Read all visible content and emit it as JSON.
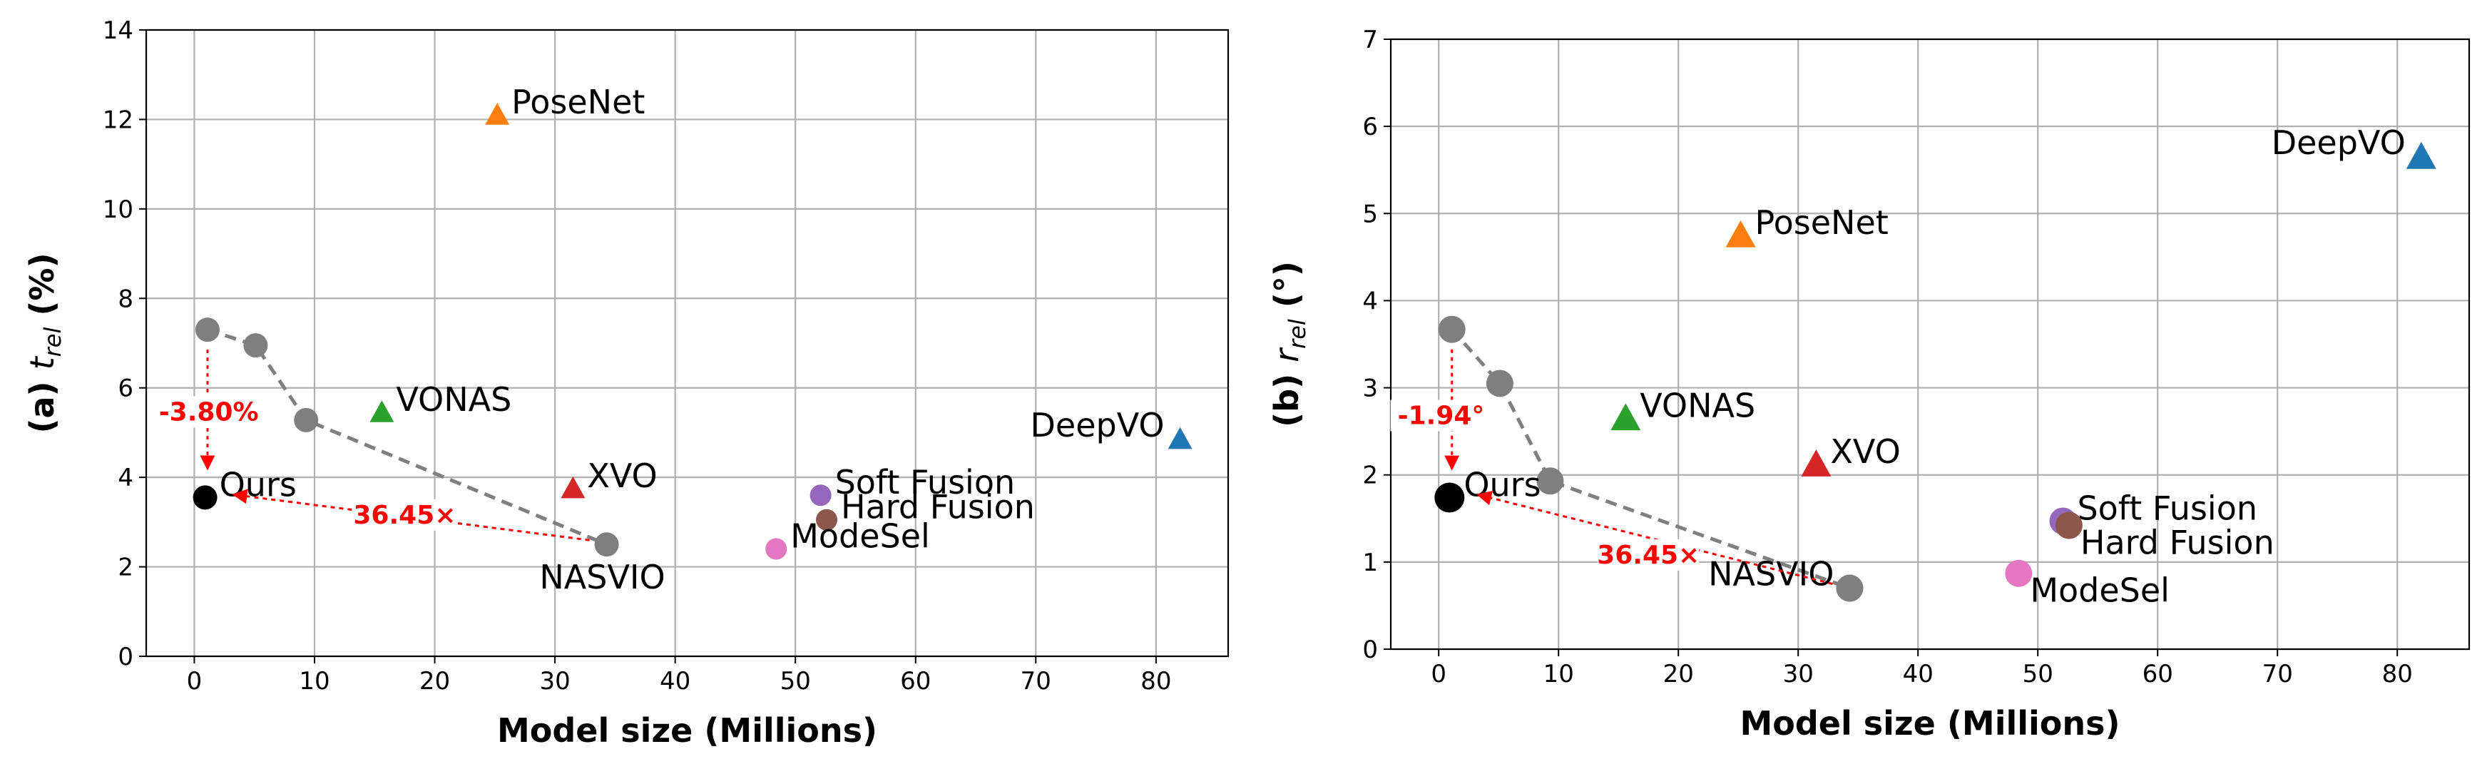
{
  "chart_data": [
    {
      "type": "scatter",
      "panel_label": "(a)",
      "ylabel": "t",
      "ylabel_sub": "rel",
      "ylabel_unit": "(%)",
      "xlabel": "Model size (Millions)",
      "xlim": [
        -4,
        86
      ],
      "ylim": [
        0,
        14
      ],
      "xticks": [
        0,
        10,
        20,
        30,
        40,
        50,
        60,
        70,
        80
      ],
      "yticks": [
        0,
        2,
        4,
        6,
        8,
        10,
        12,
        14
      ],
      "grid": true,
      "points": [
        {
          "name": "PoseNet",
          "x": 25.2,
          "y": 12.1,
          "marker": "triangle",
          "color": "#ff7f0e",
          "label_pos": "right"
        },
        {
          "name": "VONAS",
          "x": 15.6,
          "y": 5.45,
          "marker": "triangle",
          "color": "#2ca02c",
          "label_pos": "right"
        },
        {
          "name": "XVO",
          "x": 31.5,
          "y": 3.75,
          "marker": "triangle",
          "color": "#d62728",
          "label_pos": "right"
        },
        {
          "name": "DeepVO",
          "x": 82.0,
          "y": 4.85,
          "marker": "triangle",
          "color": "#1f77b4",
          "label_pos": "left"
        },
        {
          "name": "Soft Fusion",
          "x": 52.1,
          "y": 3.6,
          "marker": "circle",
          "color": "#9467bd",
          "label_pos": "right"
        },
        {
          "name": "Hard Fusion",
          "x": 52.6,
          "y": 3.05,
          "marker": "circle",
          "color": "#8c564b",
          "label_pos": "right"
        },
        {
          "name": "ModeSel",
          "x": 48.4,
          "y": 2.4,
          "marker": "circle",
          "color": "#e377c2",
          "label_pos": "right"
        },
        {
          "name": "Ours",
          "x": 0.9,
          "y": 3.55,
          "marker": "circle",
          "color": "#000000",
          "label_pos": "right"
        },
        {
          "name": "NASVIO",
          "x": 34.3,
          "y": 2.5,
          "marker": "circle",
          "color": "#7f7f7f",
          "label_pos": "below"
        }
      ],
      "pareto_line": {
        "x": [
          1.1,
          5.1,
          9.3,
          34.3
        ],
        "y": [
          7.3,
          6.95,
          5.28,
          2.5
        ],
        "color": "#7f7f7f"
      },
      "annotations": [
        {
          "text": "-3.80%",
          "x": 1.2,
          "y": 5.3
        },
        {
          "text": "36.45×",
          "x": 17.5,
          "y": 3.0
        }
      ]
    },
    {
      "type": "scatter",
      "panel_label": "(b)",
      "ylabel": "r",
      "ylabel_sub": "rel",
      "ylabel_unit": "(°)",
      "xlabel": "Model size (Millions)",
      "xlim": [
        -4,
        86
      ],
      "ylim": [
        0,
        7
      ],
      "xticks": [
        0,
        10,
        20,
        30,
        40,
        50,
        60,
        70,
        80
      ],
      "yticks": [
        0,
        1,
        2,
        3,
        4,
        5,
        6,
        7
      ],
      "grid": true,
      "points": [
        {
          "name": "DeepVO",
          "x": 82.0,
          "y": 5.65,
          "marker": "triangle",
          "color": "#1f77b4",
          "label_pos": "left"
        },
        {
          "name": "PoseNet",
          "x": 25.2,
          "y": 4.75,
          "marker": "triangle",
          "color": "#ff7f0e",
          "label_pos": "right"
        },
        {
          "name": "VONAS",
          "x": 15.6,
          "y": 2.65,
          "marker": "triangle",
          "color": "#2ca02c",
          "label_pos": "right"
        },
        {
          "name": "XVO",
          "x": 31.5,
          "y": 2.12,
          "marker": "triangle",
          "color": "#d62728",
          "label_pos": "right"
        },
        {
          "name": "Soft Fusion",
          "x": 52.1,
          "y": 1.47,
          "marker": "circle",
          "color": "#9467bd",
          "label_pos": "right"
        },
        {
          "name": "Hard Fusion",
          "x": 52.6,
          "y": 1.42,
          "marker": "circle",
          "color": "#8c564b",
          "label_pos": "right-below"
        },
        {
          "name": "ModeSel",
          "x": 48.4,
          "y": 0.87,
          "marker": "circle",
          "color": "#e377c2",
          "label_pos": "right-below"
        },
        {
          "name": "Ours",
          "x": 0.9,
          "y": 1.74,
          "marker": "circle",
          "color": "#000000",
          "label_pos": "right"
        },
        {
          "name": "NASVIO",
          "x": 34.3,
          "y": 0.7,
          "marker": "circle",
          "color": "#7f7f7f",
          "label_pos": "left"
        }
      ],
      "pareto_line": {
        "x": [
          1.1,
          5.1,
          9.3,
          34.3
        ],
        "y": [
          3.67,
          3.05,
          1.93,
          0.7
        ],
        "color": "#7f7f7f"
      },
      "annotations": [
        {
          "text": "-1.94°",
          "x": 0.2,
          "y": 2.6
        },
        {
          "text": "36.45×",
          "x": 17.5,
          "y": 1.0
        }
      ]
    }
  ]
}
